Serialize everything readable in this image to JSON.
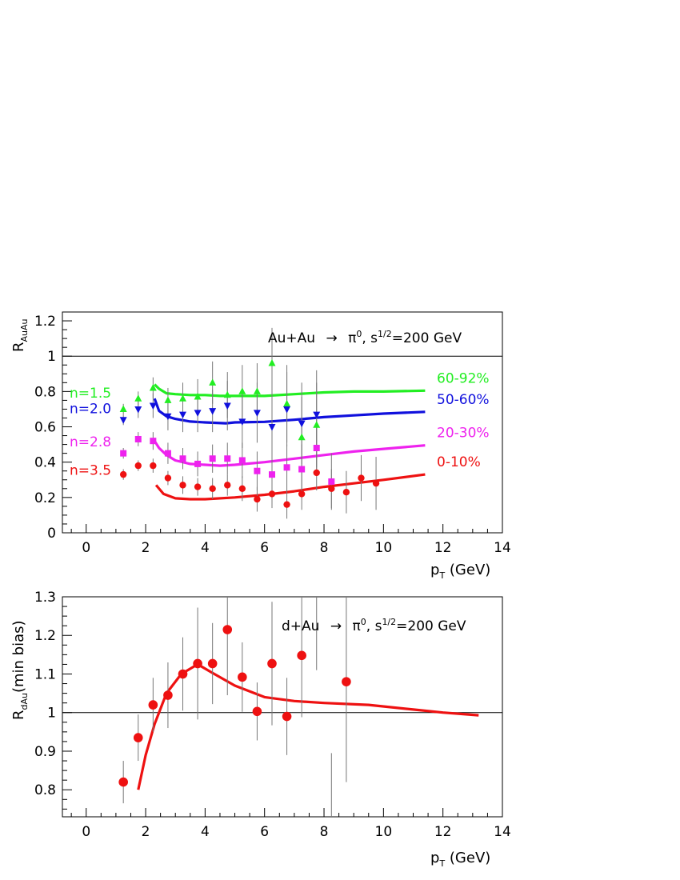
{
  "chart_data": [
    {
      "type": "scatter",
      "title": "Au+Au → π⁰, s^{1/2}=200 GeV",
      "title_parts": {
        "reaction": "Au+Au",
        "arrow": "→",
        "particle": "π",
        "particle_sup": "0",
        "energy_prefix": ", s",
        "energy_sup": "1/2",
        "energy": "=200 GeV"
      },
      "ylabel": {
        "main": "R",
        "sub": "AuAu"
      },
      "xlabel": {
        "main": "p",
        "sub": "T",
        "unit": " (GeV)"
      },
      "xlim": [
        -0.8,
        14
      ],
      "ylim": [
        0,
        1.25
      ],
      "x_ticks": [
        "0",
        "2",
        "4",
        "6",
        "8",
        "10",
        "12",
        "14"
      ],
      "y_ticks": [
        "0",
        "0.2",
        "0.4",
        "0.6",
        "0.8",
        "1",
        "1.2"
      ],
      "reference_line": 1,
      "series": [
        {
          "name": "60-92%",
          "n_label": "n=1.5",
          "color": "#22ee22",
          "marker": "triangle-up",
          "x": [
            1.25,
            1.75,
            2.25,
            2.75,
            3.25,
            3.75,
            4.25,
            4.75,
            5.25,
            5.75,
            6.25,
            6.75,
            7.25,
            7.75
          ],
          "y": [
            0.7,
            0.76,
            0.82,
            0.75,
            0.76,
            0.77,
            0.85,
            0.78,
            0.8,
            0.8,
            0.96,
            0.73,
            0.54,
            0.61
          ],
          "err": [
            0.03,
            0.04,
            0.06,
            0.07,
            0.09,
            0.1,
            0.12,
            0.13,
            0.15,
            0.16,
            0.2,
            0.22,
            0.23,
            0.24
          ],
          "curve_x": [
            2.3,
            2.45,
            2.7,
            3.0,
            3.5,
            4.0,
            4.5,
            5.0,
            6.0,
            7.0,
            8.0,
            9.0,
            10.0,
            11.4
          ],
          "curve_y": [
            0.84,
            0.815,
            0.79,
            0.785,
            0.78,
            0.78,
            0.775,
            0.775,
            0.775,
            0.785,
            0.795,
            0.8,
            0.8,
            0.805
          ]
        },
        {
          "name": "50-60%",
          "n_label": "n=2.0",
          "color": "#1010dd",
          "marker": "triangle-down",
          "x": [
            1.25,
            1.75,
            2.25,
            2.75,
            3.25,
            3.75,
            4.25,
            4.75,
            5.25,
            5.75,
            6.25,
            6.75,
            7.25,
            7.75
          ],
          "y": [
            0.64,
            0.7,
            0.72,
            0.66,
            0.67,
            0.68,
            0.69,
            0.72,
            0.63,
            0.68,
            0.6,
            0.7,
            0.62,
            0.67
          ],
          "err": [
            0.03,
            0.05,
            0.07,
            0.08,
            0.1,
            0.11,
            0.12,
            0.14,
            0.15,
            0.17,
            0.19,
            0.21,
            0.23,
            0.25
          ],
          "curve_x": [
            2.3,
            2.45,
            2.7,
            3.0,
            3.5,
            4.0,
            4.7,
            5.0,
            6.0,
            7.0,
            8.0,
            9.0,
            10.0,
            11.4
          ],
          "curve_y": [
            0.76,
            0.69,
            0.66,
            0.645,
            0.63,
            0.625,
            0.62,
            0.625,
            0.628,
            0.64,
            0.655,
            0.665,
            0.675,
            0.685
          ]
        },
        {
          "name": "20-30%",
          "n_label": "n=2.8",
          "color": "#ee22ee",
          "marker": "square",
          "x": [
            1.25,
            1.75,
            2.25,
            2.75,
            3.25,
            3.75,
            4.25,
            4.75,
            5.25,
            5.75,
            6.25,
            6.75,
            7.25,
            7.75,
            8.25
          ],
          "y": [
            0.45,
            0.53,
            0.52,
            0.45,
            0.42,
            0.39,
            0.42,
            0.42,
            0.41,
            0.35,
            0.33,
            0.37,
            0.36,
            0.48,
            0.29
          ],
          "err": [
            0.03,
            0.04,
            0.05,
            0.06,
            0.06,
            0.07,
            0.08,
            0.09,
            0.1,
            0.11,
            0.12,
            0.13,
            0.14,
            0.15,
            0.16
          ],
          "curve_x": [
            2.3,
            2.45,
            2.7,
            3.0,
            3.5,
            4.0,
            4.5,
            5.0,
            6.0,
            7.0,
            8.0,
            9.0,
            10.0,
            11.4
          ],
          "curve_y": [
            0.52,
            0.48,
            0.44,
            0.41,
            0.39,
            0.385,
            0.38,
            0.385,
            0.4,
            0.42,
            0.44,
            0.46,
            0.475,
            0.495
          ]
        },
        {
          "name": "0-10%",
          "n_label": "n=3.5",
          "color": "#ee1111",
          "marker": "circle",
          "x": [
            1.25,
            1.75,
            2.25,
            2.75,
            3.25,
            3.75,
            4.25,
            4.75,
            5.25,
            5.75,
            6.25,
            6.75,
            7.25,
            7.75,
            8.25,
            8.75,
            9.25,
            9.75
          ],
          "y": [
            0.33,
            0.38,
            0.38,
            0.31,
            0.27,
            0.26,
            0.25,
            0.27,
            0.25,
            0.19,
            0.22,
            0.16,
            0.22,
            0.34,
            0.25,
            0.23,
            0.31,
            0.28
          ],
          "err": [
            0.03,
            0.03,
            0.04,
            0.04,
            0.05,
            0.05,
            0.06,
            0.06,
            0.07,
            0.07,
            0.08,
            0.08,
            0.09,
            0.1,
            0.11,
            0.12,
            0.13,
            0.15
          ],
          "curve_x": [
            2.35,
            2.6,
            3.0,
            3.5,
            4.0,
            5.0,
            6.0,
            7.0,
            8.0,
            9.0,
            10.0,
            11.4
          ],
          "curve_y": [
            0.27,
            0.22,
            0.195,
            0.19,
            0.19,
            0.2,
            0.215,
            0.235,
            0.26,
            0.28,
            0.3,
            0.33
          ]
        }
      ]
    },
    {
      "type": "scatter",
      "title": "d+Au → π⁰, s^{1/2}=200 GeV",
      "title_parts": {
        "reaction": "d+Au",
        "arrow": "→",
        "particle": "π",
        "particle_sup": "0",
        "energy_prefix": ", s",
        "energy_sup": "1/2",
        "energy": "=200 GeV"
      },
      "ylabel": {
        "main": "R",
        "sub": "dAu",
        "rest": "(min bias)"
      },
      "xlabel": {
        "main": "p",
        "sub": "T",
        "unit": " (GeV)"
      },
      "xlim": [
        -0.8,
        14
      ],
      "ylim": [
        0.73,
        1.3
      ],
      "x_ticks": [
        "0",
        "2",
        "4",
        "6",
        "8",
        "10",
        "12",
        "14"
      ],
      "y_ticks": [
        "0.8",
        "0.9",
        "1",
        "1.1",
        "1.2",
        "1.3"
      ],
      "reference_line": 1,
      "series": [
        {
          "name": "d+Au",
          "color": "#ee1111",
          "marker": "circle",
          "x": [
            1.25,
            1.75,
            2.25,
            2.75,
            3.25,
            3.75,
            4.25,
            4.75,
            5.25,
            5.75,
            6.25,
            6.75,
            7.25,
            8.75
          ],
          "y": [
            0.82,
            0.935,
            1.02,
            1.045,
            1.1,
            1.127,
            1.127,
            1.215,
            1.092,
            1.003,
            1.127,
            0.99,
            1.148,
            1.08
          ],
          "err": [
            0.055,
            0.06,
            0.07,
            0.085,
            0.095,
            0.145,
            0.105,
            0.17,
            0.09,
            0.075,
            0.16,
            0.1,
            0.16,
            0.26
          ],
          "curve_x": [
            1.75,
            2.0,
            2.3,
            2.7,
            3.2,
            3.75,
            4.2,
            5.0,
            6.0,
            7.0,
            8.0,
            9.5,
            11.0,
            12.0,
            13.2
          ],
          "curve_y": [
            0.8,
            0.89,
            0.97,
            1.05,
            1.1,
            1.125,
            1.105,
            1.07,
            1.04,
            1.03,
            1.025,
            1.02,
            1.008,
            1.0,
            0.993
          ]
        }
      ],
      "extra_error_bars": [
        {
          "x": 7.75,
          "y_low": 1.11,
          "y_high": 1.3
        },
        {
          "x": 8.25,
          "y_low": 0.73,
          "y_high": 0.895
        }
      ]
    }
  ]
}
